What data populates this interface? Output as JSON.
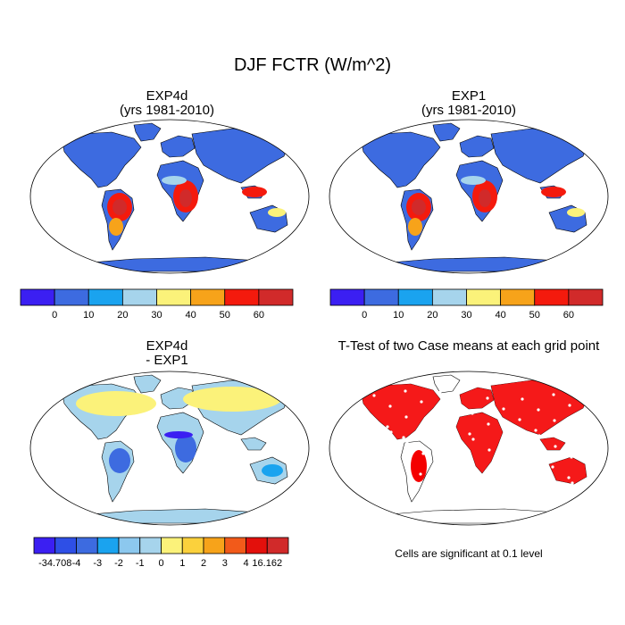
{
  "figure": {
    "title": "DJF FCTR (W/m^2)"
  },
  "panels": [
    {
      "title": "EXP4d",
      "subtitle": "(yrs 1981-2010)"
    },
    {
      "title": "EXP1",
      "subtitle": "(yrs 1981-2010)"
    },
    {
      "title": "EXP4d",
      "subtitle": "- EXP1"
    },
    {
      "title": "T-Test of two Case means at each grid point",
      "subtitle": ""
    }
  ],
  "colorbars": {
    "absolute": {
      "labels": [
        "0",
        "10",
        "20",
        "30",
        "40",
        "50",
        "60"
      ],
      "colors": [
        "#3b1ff2",
        "#3d6be0",
        "#1aa3ef",
        "#a6d4ec",
        "#fbf27a",
        "#f7a31a",
        "#f41a0d",
        "#d12a2a"
      ]
    },
    "difference": {
      "labels": [
        "-34.708",
        "-4",
        "-3",
        "-2",
        "-1",
        "0",
        "1",
        "2",
        "3",
        "4",
        "16.162"
      ],
      "colors": [
        "#3b1ff2",
        "#2e4fe6",
        "#3d6be0",
        "#1aa3ef",
        "#8cc8ee",
        "#a6d4ec",
        "#fbf27a",
        "#fbd13c",
        "#f7a31a",
        "#f25a1a",
        "#e3100c",
        "#d12a2a"
      ]
    }
  },
  "significance_note": "Cells are significant at 0.1 level",
  "palette": {
    "ocean": "#ffffff",
    "coast": "#000000",
    "significant": "#f40000"
  }
}
